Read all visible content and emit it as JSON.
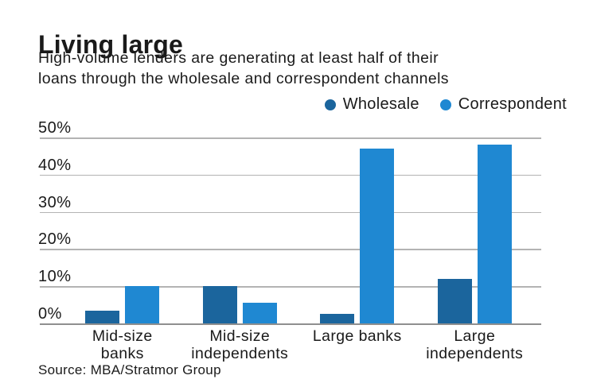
{
  "header": {
    "title": "Living large",
    "subtitle_lines": [
      "High-volume lenders are generating at least half of their",
      "loans through the wholesale and correspondent channels"
    ]
  },
  "legend": [
    {
      "label": "Wholesale",
      "color": "#1b659d"
    },
    {
      "label": "Correspondent",
      "color": "#1f88d2"
    }
  ],
  "chart_data": {
    "type": "bar",
    "title": "Living large",
    "subtitle": "High-volume lenders are generating at least half of their loans through the wholesale and correspondent channels",
    "categories": [
      "Mid-size banks",
      "Mid-size independents",
      "Large banks",
      "Large independents"
    ],
    "category_label_lines": [
      [
        "Mid-size",
        "banks"
      ],
      [
        "Mid-size",
        "independents"
      ],
      [
        "Large banks"
      ],
      [
        "Large",
        "independents"
      ]
    ],
    "series": [
      {
        "name": "Wholesale",
        "color": "#1b659d",
        "values": [
          3.5,
          10,
          2.5,
          12
        ]
      },
      {
        "name": "Correspondent",
        "color": "#1f88d2",
        "values": [
          10,
          5.5,
          47,
          48
        ]
      }
    ],
    "xlabel": "",
    "ylabel": "",
    "ylim": [
      0,
      50
    ],
    "y_ticks": [
      50,
      40,
      30,
      20,
      10,
      0
    ],
    "y_tick_format": "{v}%",
    "grid": true,
    "legend_position": "top-right",
    "gridline_color": "#b3b3b3",
    "axis_color": "#8f8f8f"
  },
  "footer": {
    "source": "Source: MBA/Stratmor Group"
  }
}
